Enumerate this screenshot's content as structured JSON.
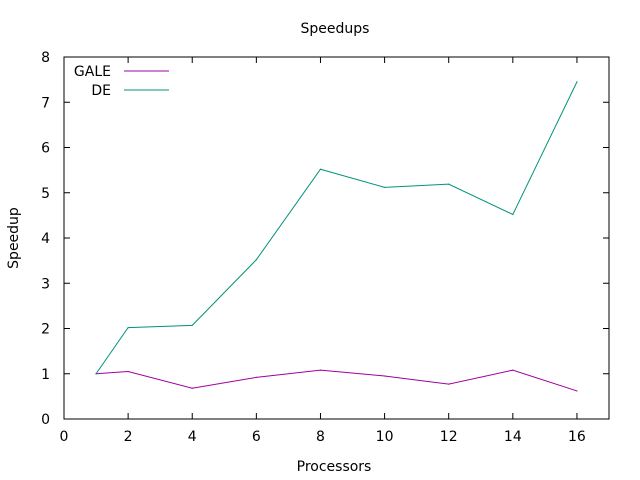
{
  "chart_data": {
    "type": "line",
    "title": "Speedups",
    "xlabel": "Processors",
    "ylabel": "Speedup",
    "xlim": [
      0,
      17
    ],
    "ylim": [
      0,
      8
    ],
    "xticks": [
      "0",
      "2",
      "4",
      "6",
      "8",
      "10",
      "12",
      "14",
      "16"
    ],
    "yticks": [
      "0",
      "1",
      "2",
      "3",
      "4",
      "5",
      "6",
      "7",
      "8"
    ],
    "grid": false,
    "legend_position": "top-left",
    "x": [
      1,
      2,
      4,
      6,
      8,
      10,
      12,
      14,
      16
    ],
    "series": [
      {
        "name": "GALE",
        "color": "#a000a0",
        "values": [
          1.0,
          1.05,
          0.68,
          0.92,
          1.08,
          0.95,
          0.77,
          1.08,
          0.62
        ]
      },
      {
        "name": "DE",
        "color": "#00937a",
        "values": [
          1.0,
          2.02,
          2.07,
          3.52,
          5.52,
          5.12,
          5.19,
          4.52,
          7.45
        ]
      }
    ]
  }
}
